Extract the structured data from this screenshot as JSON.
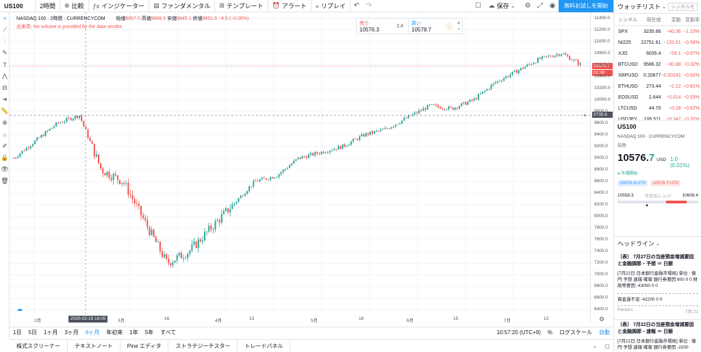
{
  "toolbar": {
    "symbol": "US100",
    "interval": "2時間",
    "compare": "比較",
    "indicators": "インジケーター",
    "fundamentals": "ファンダメンタル",
    "templates": "テンプレート",
    "alert": "アラート",
    "replay": "リプレイ",
    "save": "保存",
    "trial": "無料お試しを開始"
  },
  "legend": {
    "title": "NASDAQ 100 · 2時間 · CURRENCYCOM",
    "open_label": "始値",
    "open": "9657.0",
    "high_label": "高値",
    "high": "9666.5",
    "low_label": "安値",
    "low": "9645.1",
    "close_label": "終値",
    "close": "9652.6",
    "change": "−4.5 (−0.05%)",
    "warning": "出来高: No volume is provided by the data vendor."
  },
  "trade": {
    "sell_label": "売り",
    "sell_price": "10576.3",
    "spread": "2.4",
    "buy_label": "買い",
    "buy_price": "10578.7"
  },
  "price_axis": {
    "labels": [
      "11400.0",
      "11200.0",
      "11000.0",
      "10800.0",
      "10600.0",
      "10400.0",
      "10200.0",
      "10000.0",
      "9800.0",
      "9600.0",
      "9400.0",
      "9200.0",
      "9000.0",
      "8800.0",
      "8600.0",
      "8400.0",
      "8200.0",
      "8000.0",
      "7800.0",
      "7600.0",
      "7400.0",
      "7200.0",
      "7000.0",
      "6800.0",
      "6600.0",
      "6400.0"
    ],
    "current_price": "10576.7",
    "countdown": "02:39",
    "crosshair_price": "9735.6"
  },
  "time_axis": {
    "labels": [
      "2月",
      "3月",
      "16",
      "4月",
      "13",
      "5月",
      "18",
      "6月",
      "15",
      "7月",
      "13"
    ],
    "crosshair_time": "2020-02-19   16:00"
  },
  "range_bar": {
    "ranges": [
      "1日",
      "5日",
      "1ヶ月",
      "3ヶ月",
      "6ヶ月",
      "年初来",
      "1年",
      "5年",
      "すべて"
    ],
    "active": "6ヶ月",
    "clock": "10:57:20 (UTC+9)",
    "percent": "%",
    "log": "ログスケール",
    "auto": "自動"
  },
  "bottom_tabs": [
    "株式スクリーナー",
    "テキストノート",
    "Pine エディタ",
    "ストラテジーテスター",
    "トレードパネル"
  ],
  "watchlist": {
    "title": "ウォッチリスト",
    "alt_button": "シンボルを",
    "columns": {
      "symbol": "シンボル",
      "last": "現在値",
      "change": "変動",
      "pct": "変動率"
    },
    "rows": [
      {
        "symbol": "SPX",
        "last": "3235.66",
        "change": "−40.36",
        "pct": "−1.23%",
        "dir": "neg"
      },
      {
        "symbol": "NI225",
        "last": "22751.61",
        "change": "−132.61",
        "pct": "−0.58%",
        "dir": "neg"
      },
      {
        "symbol": "XJO",
        "last": "6035.4",
        "change": "−59.1",
        "pct": "−0.97%",
        "dir": "neg"
      },
      {
        "symbol": "BTCUSD",
        "last": "9586.32",
        "change": "−30.88",
        "pct": "−0.32%",
        "dir": "neg"
      },
      {
        "symbol": "XRPUSD",
        "last": "0.20677",
        "change": "−0.00191",
        "pct": "−0.92%",
        "dir": "neg"
      },
      {
        "symbol": "ETHUSD",
        "last": "273.44",
        "change": "−2.22",
        "pct": "−0.81%",
        "dir": "neg"
      },
      {
        "symbol": "EOSUSD",
        "last": "2.644",
        "change": "−0.014",
        "pct": "−0.53%",
        "dir": "neg"
      },
      {
        "symbol": "LTCUSD",
        "last": "44.70",
        "change": "−0.28",
        "pct": "−0.62%",
        "dir": "neg"
      },
      {
        "symbol": "USDJPY",
        "last": "106.511",
        "change": "−0.347",
        "pct": "−0.32%",
        "dir": "neg"
      }
    ]
  },
  "details": {
    "symbol": "US100",
    "name": "NASDAQ 100 · CURRENCYCOM",
    "type": "指数",
    "price_main": "10576.",
    "price_tail": "7",
    "currency": "USD",
    "change": "1.0 (0.01%)",
    "status": "● 市場開始",
    "bid": "10576.3×270",
    "ask": "10578.7×270",
    "range_low": "10558.3",
    "range_label": "今日のレンジ",
    "range_high": "10608.4"
  },
  "headlines": {
    "title": "ヘッドライン",
    "items": [
      {
        "headline": "〔表〕 7月27日の当座預金増減要因と金融調節・予想 ＝ 日銀",
        "body": "[7月22日 日本銀行金融市場局] 単位 : 億円 予想 速報 確報 銀行券要因 800 0 0 財政等要因 -43000 0 0",
        "body2": "資金過不足 -42200 0 0",
        "source": "Reuters",
        "date": "7月 22"
      },
      {
        "headline": "〔表〕 7月22日の当座預金増減要因と金融調節・速報 ＝ 日銀",
        "body": "[7月22日 日本銀行金融市場局] 単位 : 億円 予想 速報 確報 銀行券要因 -2200"
      }
    ]
  },
  "chart_data": {
    "type": "candlestick",
    "symbol": "US100",
    "interval": "2h",
    "x": [
      "2020-01-27",
      "2020-02-03",
      "2020-02-10",
      "2020-02-19",
      "2020-02-24",
      "2020-03-02",
      "2020-03-09",
      "2020-03-16",
      "2020-03-23",
      "2020-03-30",
      "2020-04-06",
      "2020-04-13",
      "2020-04-20",
      "2020-04-27",
      "2020-05-04",
      "2020-05-11",
      "2020-05-18",
      "2020-05-25",
      "2020-06-01",
      "2020-06-08",
      "2020-06-15",
      "2020-06-22",
      "2020-06-29",
      "2020-07-06",
      "2020-07-13",
      "2020-07-20",
      "2020-07-22"
    ],
    "close": [
      9000,
      9300,
      9600,
      9735,
      8800,
      8600,
      7900,
      7200,
      7400,
      7800,
      8200,
      8600,
      8700,
      9000,
      9100,
      9200,
      9400,
      9500,
      9700,
      9900,
      9850,
      10000,
      10300,
      10500,
      10700,
      10800,
      10576.7
    ],
    "ylim": [
      6300,
      11500
    ],
    "current_price": 10576.7,
    "crosshair_price": 9735.6
  }
}
